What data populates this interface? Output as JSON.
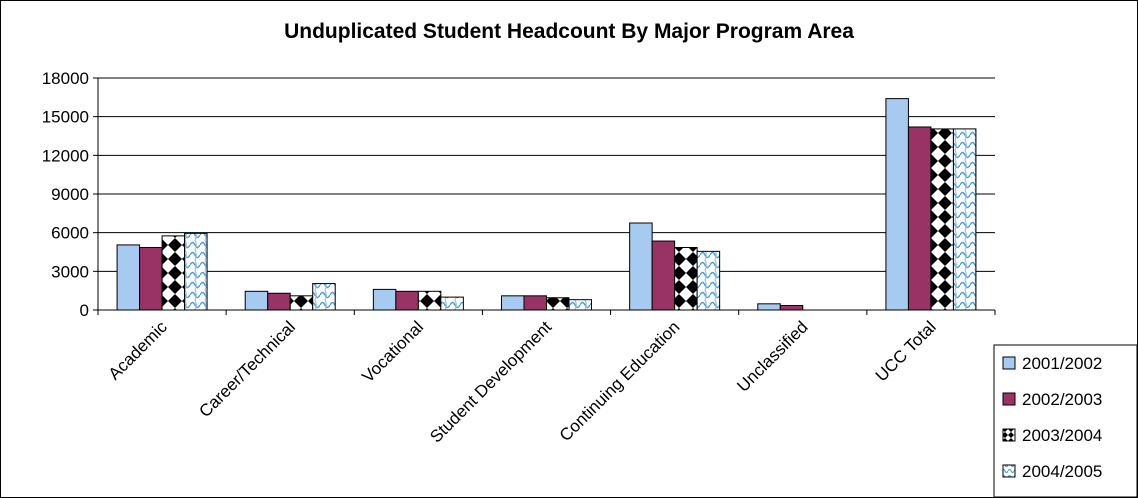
{
  "chart_data": {
    "type": "bar",
    "title": "Unduplicated Student Headcount By Major Program Area",
    "xlabel": "",
    "ylabel": "",
    "ylim": [
      0,
      18000
    ],
    "yticks": [
      "0",
      "3000",
      "6000",
      "9000",
      "12000",
      "15000",
      "18000"
    ],
    "grid": true,
    "legend_position": "bottom-right",
    "categories": [
      "Academic",
      "Career/Technical",
      "Vocational",
      "Student Development",
      "Continuing Education",
      "Unclassified",
      "UCC Total"
    ],
    "series": [
      {
        "name": "2001/2002",
        "color": "#a6caf0",
        "pattern": "solid",
        "values": [
          5050,
          1450,
          1600,
          1100,
          6750,
          480,
          16400
        ]
      },
      {
        "name": "2002/2003",
        "color": "#993366",
        "pattern": "solid",
        "values": [
          4850,
          1300,
          1450,
          1100,
          5350,
          350,
          14200
        ]
      },
      {
        "name": "2003/2004",
        "color": "#000000",
        "pattern": "diamond-checker",
        "values": [
          5750,
          1100,
          1450,
          950,
          4850,
          0,
          14050
        ]
      },
      {
        "name": "2004/2005",
        "color": "#a6caf0",
        "pattern": "wave",
        "values": [
          5950,
          2050,
          1000,
          800,
          4550,
          0,
          14050
        ]
      }
    ]
  }
}
